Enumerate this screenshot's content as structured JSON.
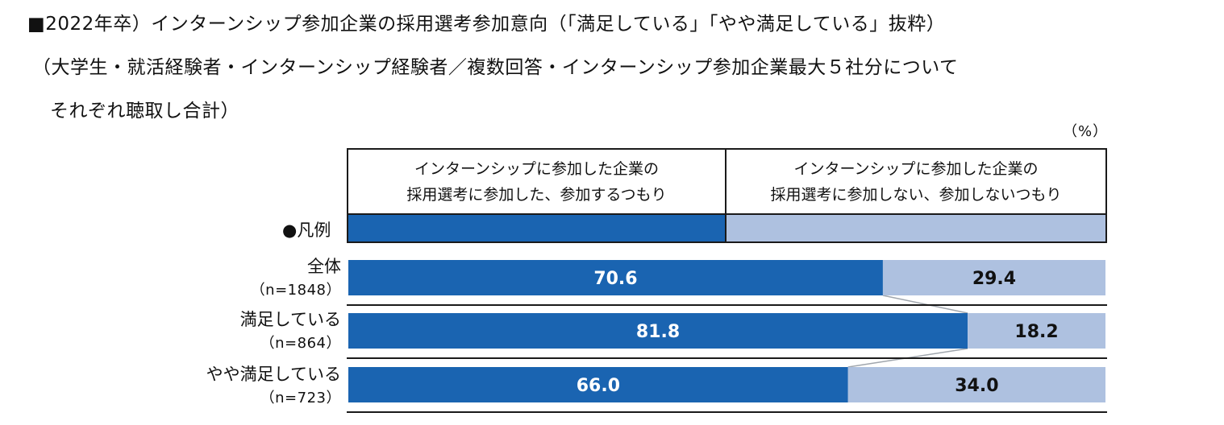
{
  "title": {
    "line1": "■2022年卒）インターンシップ参加企業の採用選考参加意向（「満足している」「やや満足している」抜粋）",
    "line2": "（大学生・就活経験者・インターンシップ経験者／複数回答・インターンシップ参加企業最大５社分について",
    "line3": "それぞれ聴取し合計）"
  },
  "unit": "（%）",
  "legend": {
    "label": "●凡例",
    "items": [
      {
        "line1": "インターンシップに参加した企業の",
        "line2": "採用選考に参加した、参加するつもり",
        "color": "#1a64b1"
      },
      {
        "line1": "インターンシップに参加した企業の",
        "line2": "採用選考に参加しない、参加しないつもり",
        "color": "#aec1e0"
      }
    ]
  },
  "rows": [
    {
      "label": "全体",
      "n": "（n=1848）"
    },
    {
      "label": "満足している",
      "n": "（n=864）"
    },
    {
      "label": "やや満足している",
      "n": "（n=723）"
    }
  ],
  "chart_data": {
    "type": "bar",
    "orientation": "horizontal",
    "stacked": true,
    "unit": "%",
    "categories": [
      "全体",
      "満足している",
      "やや満足している"
    ],
    "series": [
      {
        "name": "インターンシップに参加した企業の採用選考に参加した、参加するつもり",
        "values": [
          70.6,
          81.8,
          66.0
        ],
        "labels": [
          "70.6",
          "81.8",
          "66.0"
        ],
        "color": "#1a64b1"
      },
      {
        "name": "インターンシップに参加した企業の採用選考に参加しない、参加しないつもり",
        "values": [
          29.4,
          18.2,
          34.0
        ],
        "labels": [
          "29.4",
          "18.2",
          "34.0"
        ],
        "color": "#aec1e0"
      }
    ],
    "xlim": [
      0,
      100
    ],
    "grid": false,
    "legend_position": "top"
  }
}
